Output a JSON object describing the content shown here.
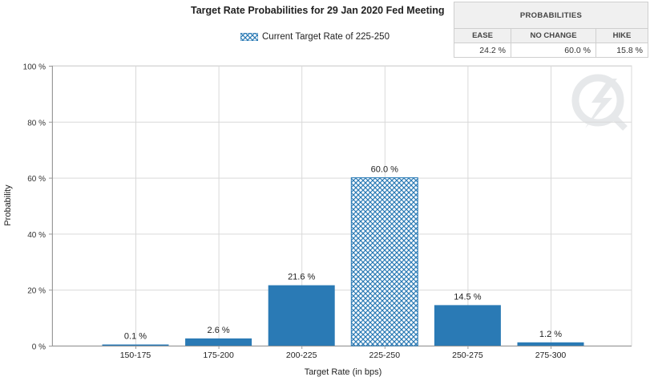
{
  "title": "Target Rate Probabilities for 29 Jan 2020 Fed Meeting",
  "legend": {
    "label": "Current Target Rate of 225-250"
  },
  "probabilities": {
    "header": "PROBABILITIES",
    "columns": [
      "EASE",
      "NO CHANGE",
      "HIKE"
    ],
    "values": [
      "24.2 %",
      "60.0 %",
      "15.8 %"
    ]
  },
  "colors": {
    "bar": "#2a7ab5",
    "grid": "#d9d9d9",
    "axis": "#999999",
    "watermark": "#e8eaec"
  },
  "watermark": {
    "icon": "lightning-q-logo-icon"
  },
  "chart_data": {
    "type": "bar",
    "title": "Target Rate Probabilities for 29 Jan 2020 Fed Meeting",
    "xlabel": "Target Rate (in bps)",
    "ylabel": "Probability",
    "categories": [
      "150-175",
      "175-200",
      "200-225",
      "225-250",
      "250-275",
      "275-300"
    ],
    "values": [
      0.1,
      2.6,
      21.6,
      60.0,
      14.5,
      1.2
    ],
    "data_labels": [
      "0.1 %",
      "2.6 %",
      "21.6 %",
      "60.0 %",
      "14.5 %",
      "1.2 %"
    ],
    "highlight_category": "225-250",
    "ylim": [
      0,
      100
    ],
    "yticks": [
      0,
      20,
      40,
      60,
      80,
      100
    ],
    "ytick_labels": [
      "0 %",
      "20 %",
      "40 %",
      "60 %",
      "80 %",
      "100 %"
    ],
    "grid": true,
    "legend_position": "top-center"
  }
}
